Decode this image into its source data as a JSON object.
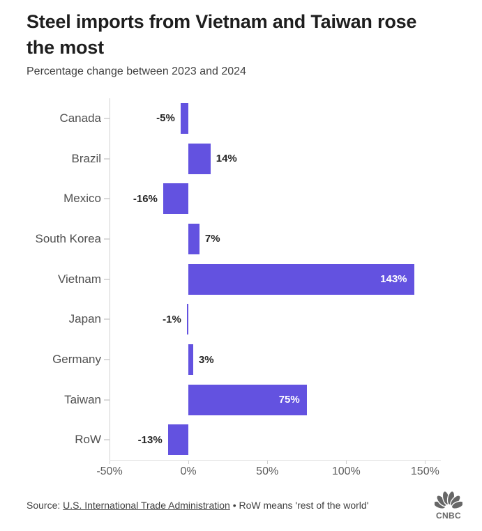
{
  "header": {
    "title": "Steel imports from Vietnam and Taiwan rose the most",
    "subtitle": "Percentage change between 2023 and 2024"
  },
  "chart_data": {
    "type": "bar",
    "orientation": "horizontal",
    "categories": [
      "Canada",
      "Brazil",
      "Mexico",
      "South Korea",
      "Vietnam",
      "Japan",
      "Germany",
      "Taiwan",
      "RoW"
    ],
    "values": [
      -5,
      14,
      -16,
      7,
      143,
      -1,
      3,
      75,
      -13
    ],
    "value_labels": [
      "-5%",
      "14%",
      "-16%",
      "7%",
      "143%",
      "-1%",
      "3%",
      "75%",
      "-13%"
    ],
    "label_inside": [
      false,
      false,
      false,
      false,
      true,
      false,
      false,
      true,
      false
    ],
    "x_ticks": [
      -50,
      0,
      50,
      100,
      150
    ],
    "x_tick_labels": [
      "-50%",
      "0%",
      "50%",
      "100%",
      "150%"
    ],
    "xlim": [
      -50,
      160
    ],
    "grid": "off",
    "legend": "none",
    "title": "Steel imports from Vietnam and Taiwan rose the most",
    "xlabel": "",
    "ylabel": "",
    "bar_color": "#6352e0"
  },
  "colors": {
    "bar": "#6352e0",
    "title_text": "#1e1e1e",
    "subtitle_text": "#414141",
    "category_text": "#4f4f4f",
    "value_text": "#262626",
    "value_text_inside": "#ffffff",
    "axis_line": "#d2d2d2",
    "logo_gray": "#676767"
  },
  "footer": {
    "source_prefix": "Source: ",
    "source_link": "U.S. International Trade Administration",
    "separator": " • ",
    "note": "RoW means 'rest of the world'",
    "logo_text": "CNBC"
  }
}
